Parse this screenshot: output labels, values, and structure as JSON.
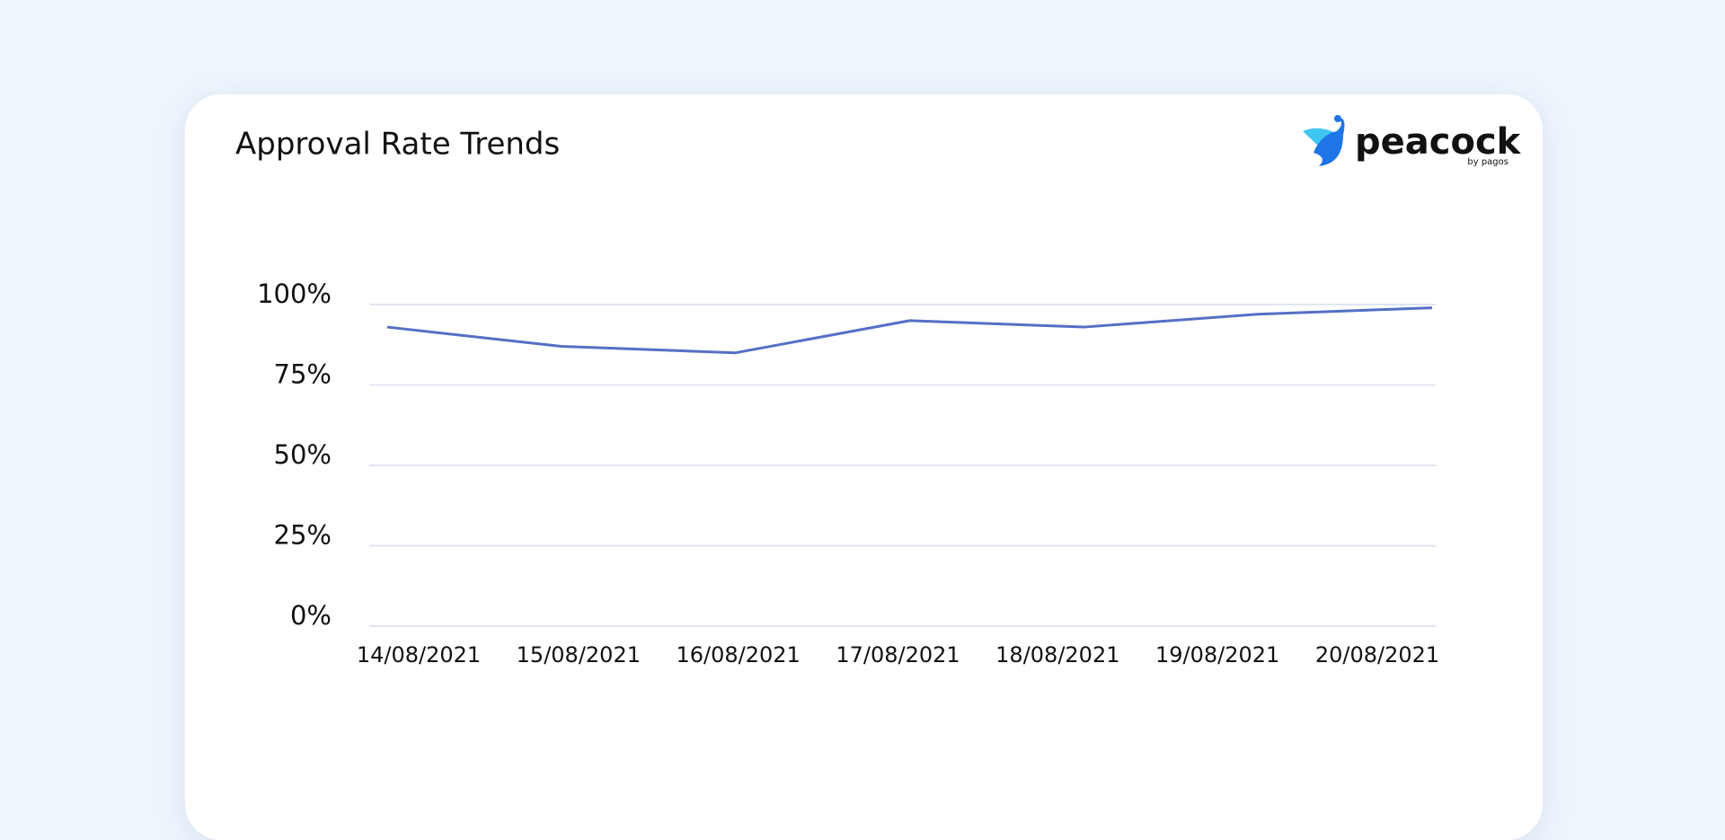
{
  "header": {
    "title": "Approval Rate Trends",
    "brand": "peacock",
    "brand_sub": "by pagos"
  },
  "chart_data": {
    "type": "line",
    "categories": [
      "14/08/2021",
      "15/08/2021",
      "16/08/2021",
      "17/08/2021",
      "18/08/2021",
      "19/08/2021",
      "20/08/2021"
    ],
    "series": [
      {
        "color": "#5470c6",
        "values": [
          93,
          87,
          85,
          95,
          93,
          97,
          99
        ]
      }
    ],
    "ylim": [
      0,
      100
    ],
    "yticks": [
      {
        "value": 0,
        "label": "0%"
      },
      {
        "value": 25,
        "label": "25%"
      },
      {
        "value": 50,
        "label": "50%"
      },
      {
        "value": 75,
        "label": "75%"
      },
      {
        "value": 100,
        "label": "100%"
      }
    ],
    "grid": true
  }
}
